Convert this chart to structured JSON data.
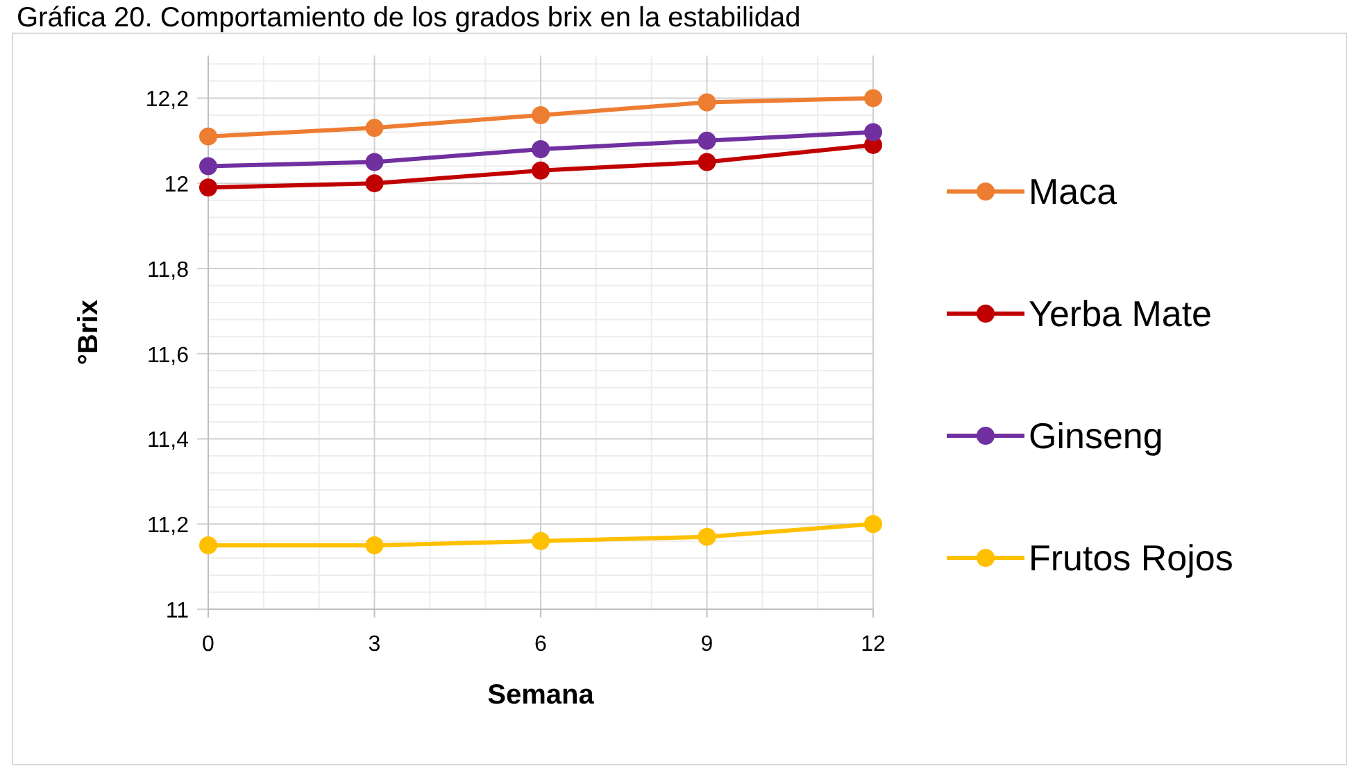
{
  "chart_data": {
    "type": "line",
    "title": "Gráfica 20. Comportamiento de los grados brix en la estabilidad",
    "xlabel": "Semana",
    "ylabel": "°Brix",
    "x": [
      0,
      3,
      6,
      9,
      12
    ],
    "xlim": [
      0,
      12
    ],
    "xticks": [
      0,
      3,
      6,
      9,
      12
    ],
    "ylim": [
      11,
      12.3
    ],
    "yticks": [
      {
        "value": 11,
        "label": "11"
      },
      {
        "value": 11.2,
        "label": "11,2"
      },
      {
        "value": 11.4,
        "label": "11,4"
      },
      {
        "value": 11.6,
        "label": "11,6"
      },
      {
        "value": 11.8,
        "label": "11,8"
      },
      {
        "value": 12,
        "label": "12"
      },
      {
        "value": 12.2,
        "label": "12,2"
      }
    ],
    "grid": true,
    "legend": "right",
    "marker": "circle",
    "line_style": "solid",
    "series": [
      {
        "name": "Maca",
        "color": "#ed7d31",
        "values": [
          12.11,
          12.13,
          12.16,
          12.19,
          12.2
        ]
      },
      {
        "name": "Yerba Mate",
        "color": "#c00000",
        "values": [
          11.99,
          12.0,
          12.03,
          12.05,
          12.09
        ]
      },
      {
        "name": "Ginseng",
        "color": "#7030a0",
        "values": [
          12.04,
          12.05,
          12.08,
          12.1,
          12.12
        ]
      },
      {
        "name": "Frutos Rojos",
        "color": "#ffc000",
        "values": [
          11.15,
          11.15,
          11.16,
          11.17,
          11.2
        ]
      }
    ]
  }
}
